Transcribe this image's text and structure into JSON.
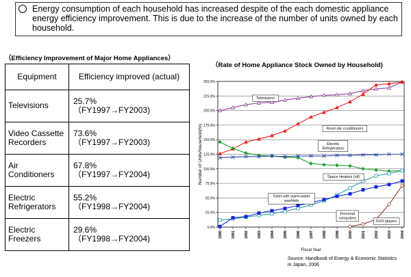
{
  "note": {
    "text": "Energy consumption of each household has increased despite of the each domestic appliance energy efficiency improvement. This is due to the increase of the number of units owned by each household."
  },
  "table": {
    "title": "（Efficiency Improvement of Major Home Appliances）",
    "headers": [
      "Equipment",
      "Efficiency improved (actual)"
    ],
    "rows": [
      {
        "equipment": "Televisions",
        "value": "25.7%",
        "period": "（FY1997→FY2003)"
      },
      {
        "equipment": "Video Cassette Recorders",
        "value": "73.6%",
        "period": "（FY1997→FY2003)"
      },
      {
        "equipment": "Air Conditioners",
        "value": "67.8%",
        "period": "（FY1997→FY2004)"
      },
      {
        "equipment": "Electric Refrigerators",
        "value": "55.2%",
        "period": "（FY1998→FY2004)"
      },
      {
        "equipment": "Electric Freezers",
        "value": "29.6%",
        "period": "（FY1998→FY2004)"
      }
    ]
  },
  "source": {
    "line1": "Source: Handbook of Energy & Economic Statistics",
    "line2": "in Japan, 2006"
  },
  "chart_data": {
    "type": "line",
    "title": "（Rate of Home Appliance Stock Owned by Household)",
    "xlabel": "Fiscal Year",
    "ylabel": "Number of Units/household(%)",
    "ylim": [
      0,
      250
    ],
    "yticks": [
      "0.0%",
      "25.0%",
      "50.0%",
      "75.0%",
      "100.0%",
      "125.0%",
      "150.0%",
      "175.0%",
      "200.0%",
      "225.0%",
      "250.0%"
    ],
    "x": [
      "1990",
      "1991",
      "1992",
      "1993",
      "1994",
      "1995",
      "1996",
      "1997",
      "1998",
      "1999",
      "2000",
      "2001",
      "2002",
      "2003",
      "2004"
    ],
    "grid": true,
    "series": [
      {
        "name": "Televisions",
        "color": "#8e3f9a",
        "marker": "triangle-open",
        "values": [
          200,
          205,
          210,
          213,
          214,
          218,
          221,
          224,
          226,
          227,
          229,
          234,
          237,
          239,
          249
        ]
      },
      {
        "name": "Room Air-conditioners",
        "color": "#ee1c1c",
        "marker": "triangle-filled",
        "values": [
          126,
          134,
          146,
          151,
          157,
          165,
          177,
          189,
          197,
          205,
          215,
          228,
          244,
          246,
          249
        ]
      },
      {
        "name": "Electric Refrigerators",
        "color": "#1f9c2c",
        "marker": "diamond-filled",
        "values": [
          146,
          135,
          127,
          123,
          122,
          120,
          119,
          109,
          107,
          106,
          105,
          100,
          98,
          96,
          97
        ]
      },
      {
        "name": "Space Heaters (oil)",
        "color": "#2a4aa8",
        "marker": "x",
        "values": [
          119,
          120,
          121,
          121,
          122,
          121,
          122,
          122,
          122,
          123,
          123,
          124,
          124,
          125,
          125
        ]
      },
      {
        "name": "Toilet with warm-water washlets",
        "color": "#2a9eaa",
        "marker": "square-open",
        "values": [
          12,
          14,
          17,
          20,
          23,
          27,
          32,
          38,
          45,
          55,
          67,
          79,
          88,
          92,
          97
        ]
      },
      {
        "name": "Personal computers",
        "color": "#1428d8",
        "marker": "square-filled",
        "values": [
          1,
          16,
          18,
          24,
          28,
          32,
          37,
          42,
          47,
          53,
          57,
          64,
          69,
          73,
          79
        ]
      },
      {
        "name": "DVD players",
        "color": "#8a3a2a",
        "marker": "circle-open",
        "values": [
          null,
          null,
          null,
          null,
          null,
          null,
          null,
          null,
          null,
          null,
          1,
          5,
          13,
          39,
          71
        ]
      }
    ],
    "annotations": [
      {
        "text": "Televisions",
        "at": [
          1993.5,
          221
        ]
      },
      {
        "text": "Room Air-conditioners",
        "at": [
          1999.6,
          169
        ]
      },
      {
        "text": "Electric\nRefrigerators",
        "at": [
          1998.7,
          139
        ]
      },
      {
        "text": "Space Heaters (oil)",
        "at": [
          1999.5,
          86
        ]
      },
      {
        "text": "Toilet with warm-water\nwashlets",
        "at": [
          1995.5,
          49
        ]
      },
      {
        "text": "Personal\ncomputers",
        "at": [
          1999.8,
          19
        ]
      },
      {
        "text": "DVD players",
        "at": [
          2002.8,
          10
        ]
      }
    ]
  }
}
